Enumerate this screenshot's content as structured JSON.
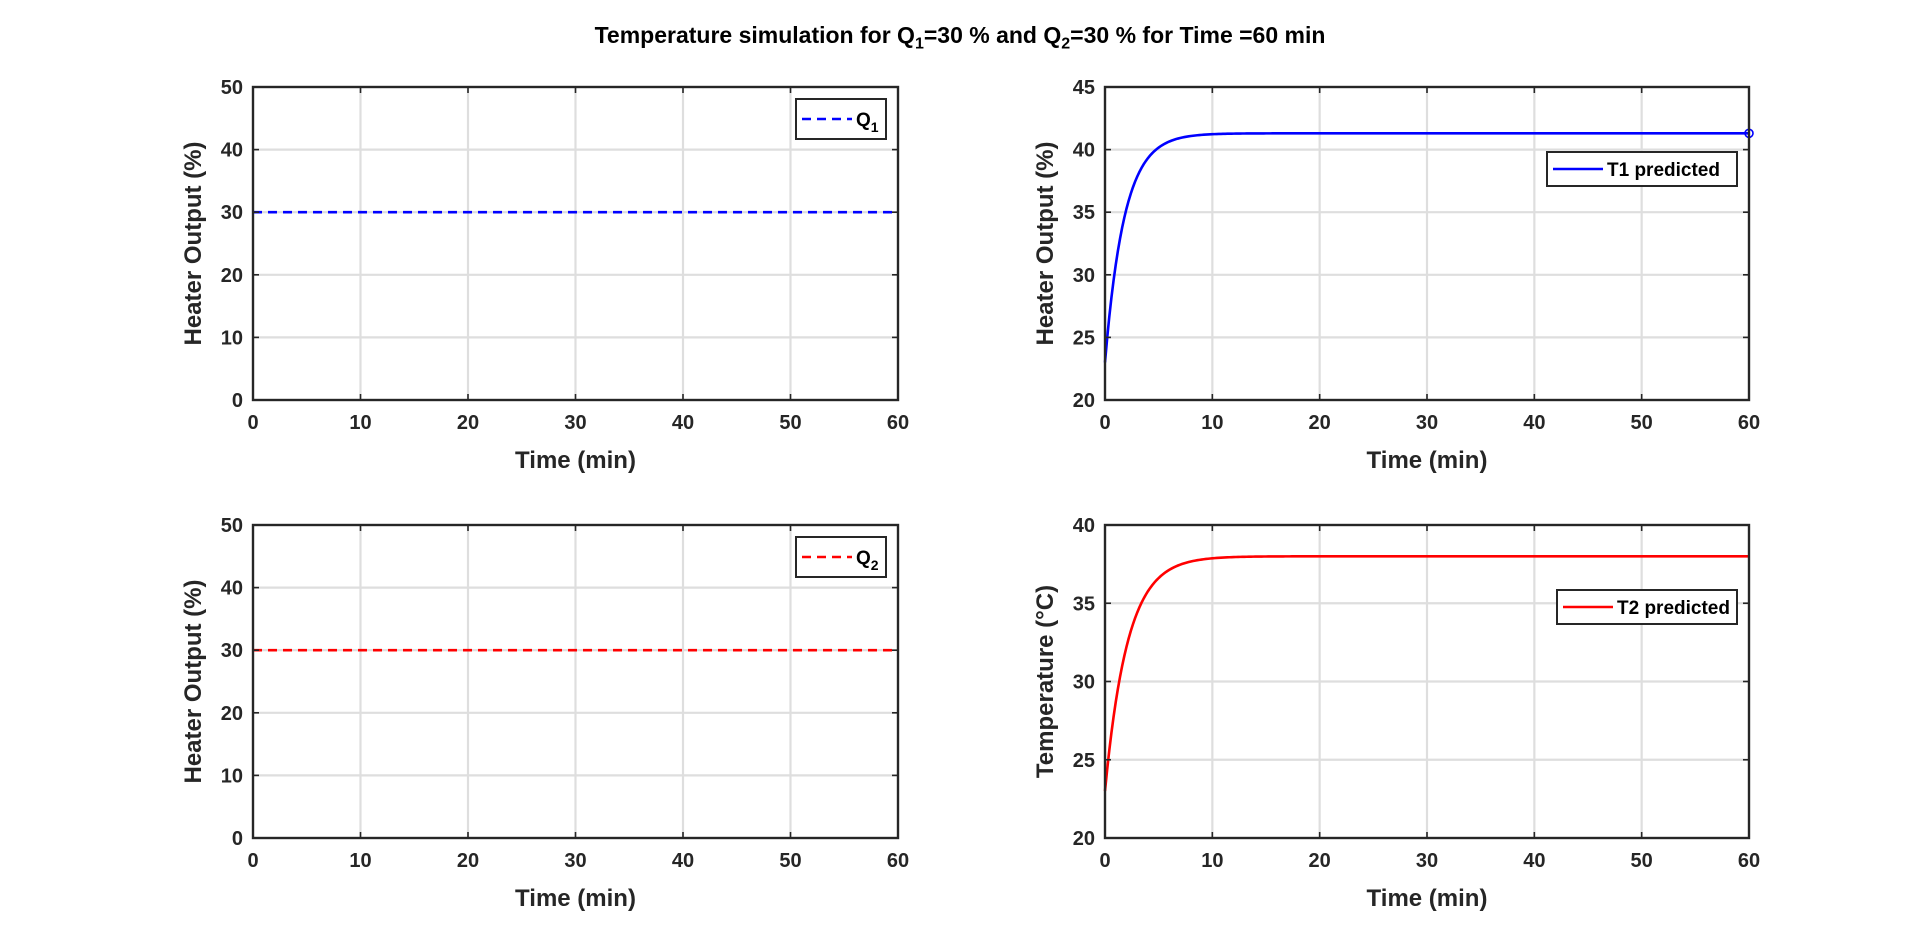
{
  "figure": {
    "title_parts": [
      "Temperature simulation for Q",
      "1",
      "=30 % and Q",
      "2",
      "=30 % for Time =60 min"
    ]
  },
  "chart_data": [
    {
      "id": "q1",
      "type": "line",
      "xlabel": "Time (min)",
      "ylabel": "Heater Output (%)",
      "xlim": [
        0,
        60
      ],
      "ylim": [
        0,
        50
      ],
      "xticks": [
        0,
        10,
        20,
        30,
        40,
        50,
        60
      ],
      "yticks": [
        0,
        10,
        20,
        30,
        40,
        50
      ],
      "grid": true,
      "legend_position": "top-right",
      "series": [
        {
          "name": "Q",
          "name_sub": "1",
          "color": "#0000ff",
          "style": "dashed",
          "curve": "constant",
          "value": 30
        }
      ]
    },
    {
      "id": "t1",
      "type": "line",
      "xlabel": "Time (min)",
      "ylabel": "Heater Output (%)",
      "xlim": [
        0,
        60
      ],
      "ylim": [
        20,
        45
      ],
      "xticks": [
        0,
        10,
        20,
        30,
        40,
        50,
        60
      ],
      "yticks": [
        20,
        25,
        30,
        35,
        40,
        45
      ],
      "grid": true,
      "legend_position": "top-right",
      "end_marker": true,
      "series": [
        {
          "name": "T1 predicted",
          "color": "#0000ff",
          "style": "solid",
          "curve": "first-order",
          "y0": 23,
          "y_final": 41.3,
          "tau": 1.8
        }
      ]
    },
    {
      "id": "q2",
      "type": "line",
      "xlabel": "Time (min)",
      "ylabel": "Heater Output (%)",
      "xlim": [
        0,
        60
      ],
      "ylim": [
        0,
        50
      ],
      "xticks": [
        0,
        10,
        20,
        30,
        40,
        50,
        60
      ],
      "yticks": [
        0,
        10,
        20,
        30,
        40,
        50
      ],
      "grid": true,
      "legend_position": "top-right",
      "series": [
        {
          "name": "Q",
          "name_sub": "2",
          "color": "#ff0000",
          "style": "dashed",
          "curve": "constant",
          "value": 30
        }
      ]
    },
    {
      "id": "t2",
      "type": "line",
      "xlabel": "Time (min)",
      "ylabel": "Temperature (°C)",
      "xlim": [
        0,
        60
      ],
      "ylim": [
        20,
        40
      ],
      "xticks": [
        0,
        10,
        20,
        30,
        40,
        50,
        60
      ],
      "yticks": [
        20,
        25,
        30,
        35,
        40
      ],
      "grid": true,
      "legend_position": "top-right",
      "series": [
        {
          "name": "T2 predicted",
          "color": "#ff0000",
          "style": "solid",
          "curve": "first-order",
          "y0": 23,
          "y_final": 38,
          "tau": 2.1
        }
      ]
    }
  ]
}
